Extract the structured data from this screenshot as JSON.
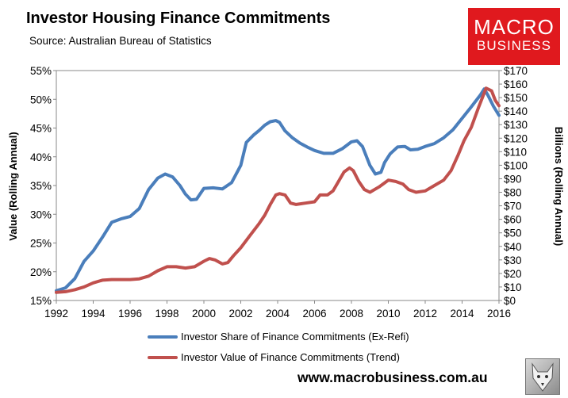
{
  "header": {
    "title": "Investor Housing Finance Commitments",
    "subtitle": "Source: Australian Bureau of Statistics"
  },
  "logo": {
    "line1": "MACRO",
    "line2": "BUSINESS",
    "color": "#e0191e"
  },
  "footer": {
    "website": "www.macrobusiness.com.au",
    "wolf_icon": "wolf-logo-icon"
  },
  "chart_data": {
    "type": "line",
    "title": "Investor Housing Finance Commitments",
    "subtitle": "Source: Australian Bureau of Statistics",
    "xlabel": "",
    "ylabel": "Value (Rolling Annual)",
    "y2label": "Billions (Rolling Annual)",
    "xlim": [
      1992,
      2016
    ],
    "ylim": [
      15,
      55
    ],
    "y2lim": [
      0,
      170
    ],
    "x_ticks": [
      "1992",
      "1994",
      "1996",
      "1998",
      "2000",
      "2002",
      "2004",
      "2006",
      "2008",
      "2010",
      "2012",
      "2014",
      "2016"
    ],
    "y_ticks": [
      "15%",
      "20%",
      "25%",
      "30%",
      "35%",
      "40%",
      "45%",
      "50%",
      "55%"
    ],
    "y2_ticks": [
      "$0",
      "$10",
      "$20",
      "$30",
      "$40",
      "$50",
      "$60",
      "$70",
      "$80",
      "$90",
      "$100",
      "$110",
      "$120",
      "$130",
      "$140",
      "$150",
      "$160",
      "$170"
    ],
    "grid": false,
    "legend": "bottom",
    "series": [
      {
        "name": "Investor Share of Finance Commitments (Ex-Refi)",
        "axis": "left",
        "color": "#4a7ebb",
        "x": [
          1992,
          1992.5,
          1993,
          1993.5,
          1994,
          1994.5,
          1995,
          1995.5,
          1996,
          1996.5,
          1997,
          1997.5,
          1997.9,
          1998.3,
          1998.7,
          1999,
          1999.3,
          1999.6,
          2000,
          2000.5,
          2001,
          2001.5,
          2002,
          2002.3,
          2002.7,
          2003,
          2003.3,
          2003.6,
          2003.9,
          2004.1,
          2004.4,
          2004.8,
          2005.2,
          2005.6,
          2006,
          2006.5,
          2007,
          2007.5,
          2008,
          2008.3,
          2008.6,
          2009,
          2009.3,
          2009.6,
          2009.8,
          2010.1,
          2010.5,
          2010.9,
          2011.2,
          2011.6,
          2012,
          2012.5,
          2013,
          2013.5,
          2014,
          2014.5,
          2015,
          2015.2,
          2015.4,
          2015.7,
          2016
        ],
        "y": [
          16.7,
          17.2,
          18.8,
          21.8,
          23.6,
          26.0,
          28.6,
          29.2,
          29.6,
          31.0,
          34.3,
          36.3,
          37.0,
          36.5,
          35.0,
          33.5,
          32.5,
          32.6,
          34.5,
          34.6,
          34.4,
          35.5,
          38.5,
          42.5,
          43.8,
          44.6,
          45.5,
          46.1,
          46.3,
          46.0,
          44.5,
          43.3,
          42.4,
          41.7,
          41.1,
          40.6,
          40.6,
          41.4,
          42.6,
          42.8,
          41.8,
          38.5,
          37.0,
          37.3,
          39.0,
          40.5,
          41.7,
          41.8,
          41.2,
          41.3,
          41.8,
          42.3,
          43.3,
          44.7,
          46.7,
          48.7,
          50.8,
          51.8,
          50.7,
          48.8,
          47.2
        ]
      },
      {
        "name": "Investor Value of Finance Commitments (Trend)",
        "axis": "right",
        "color": "#c0504d",
        "x": [
          1992,
          1992.5,
          1993,
          1993.5,
          1994,
          1994.5,
          1995,
          1995.5,
          1996,
          1996.5,
          1997,
          1997.5,
          1998,
          1998.5,
          1999,
          1999.5,
          2000,
          2000.3,
          2000.6,
          2001,
          2001.3,
          2001.6,
          2002,
          2002.5,
          2003,
          2003.3,
          2003.6,
          2003.9,
          2004.1,
          2004.4,
          2004.7,
          2005,
          2005.5,
          2006,
          2006.3,
          2006.7,
          2007,
          2007.3,
          2007.6,
          2007.9,
          2008.1,
          2008.4,
          2008.7,
          2009,
          2009.5,
          2010,
          2010.4,
          2010.8,
          2011.1,
          2011.5,
          2012,
          2012.5,
          2013,
          2013.4,
          2013.8,
          2014.1,
          2014.5,
          2014.9,
          2015.1,
          2015.3,
          2015.6,
          2015.8,
          2016
        ],
        "y": [
          6,
          6.5,
          8,
          10,
          13,
          15,
          15.5,
          15.5,
          15.5,
          16,
          18,
          22,
          25,
          25,
          24,
          25,
          29,
          31,
          30,
          27,
          28,
          33,
          39,
          48,
          57,
          63,
          71,
          78,
          79,
          78,
          72,
          71,
          72,
          73,
          78,
          78,
          81,
          88,
          95,
          98,
          96,
          88,
          82,
          80,
          84,
          89,
          88,
          86,
          82,
          80,
          81,
          85,
          89,
          96,
          108,
          118,
          128,
          143,
          150,
          157,
          155,
          148,
          144
        ]
      }
    ]
  }
}
